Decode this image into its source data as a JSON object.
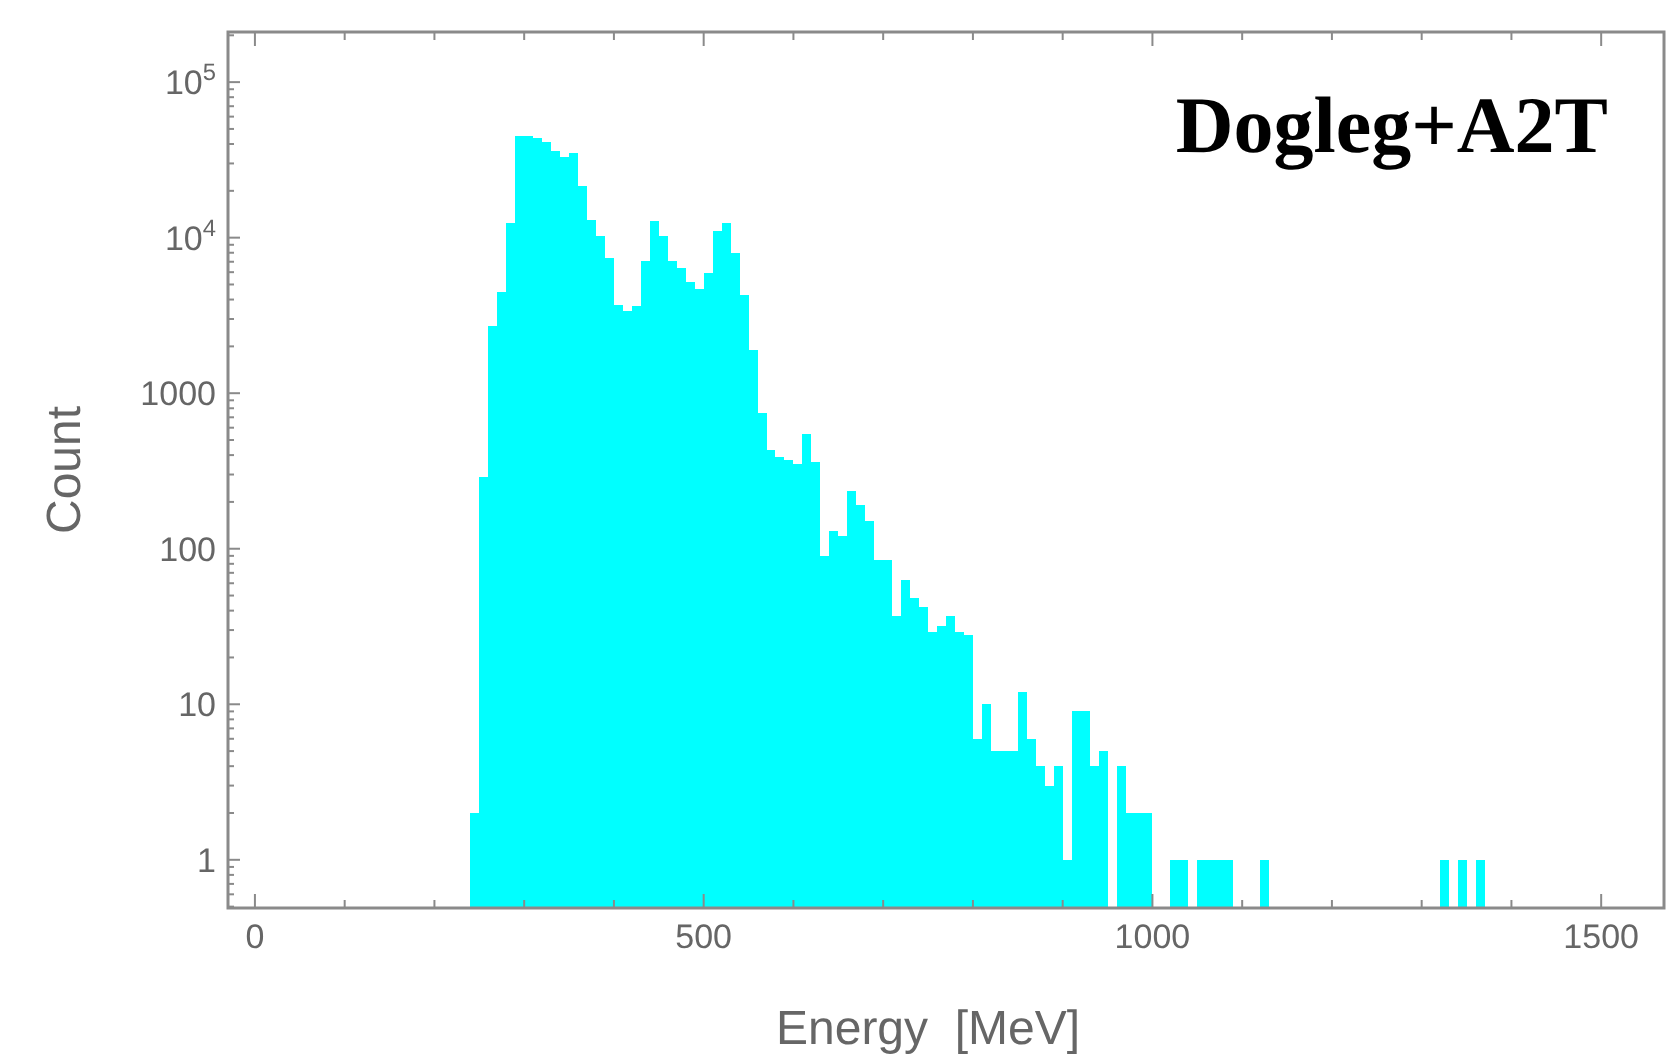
{
  "chart_data": {
    "type": "histogram",
    "title": "Dogleg+A2T",
    "xlabel": "Energy  [MeV]",
    "ylabel": "Count",
    "color": "#00ffff",
    "log": "y",
    "grid": false,
    "bins": [
      240,
      250,
      260,
      270,
      280,
      290,
      300,
      310,
      320,
      330,
      340,
      350,
      360,
      370,
      380,
      390,
      400,
      410,
      420,
      430,
      440,
      450,
      460,
      470,
      480,
      490,
      500,
      510,
      520,
      530,
      540,
      550,
      560,
      570,
      580,
      590,
      600,
      610,
      620,
      630,
      640,
      650,
      660,
      670,
      680,
      690,
      700,
      710,
      720,
      730,
      740,
      750,
      760,
      770,
      780,
      790,
      800,
      810,
      820,
      830,
      840,
      850,
      860,
      870,
      880,
      890,
      900,
      910,
      920,
      930,
      940,
      950,
      960,
      970,
      980,
      990,
      1000,
      1010,
      1020,
      1030,
      1040,
      1050,
      1060,
      1070,
      1080,
      1090,
      1100,
      1110,
      1120,
      1130,
      1140,
      1150,
      1160,
      1170,
      1180,
      1190,
      1200,
      1210,
      1220,
      1230,
      1240,
      1250,
      1260,
      1270,
      1280,
      1290,
      1300,
      1310,
      1320,
      1330,
      1340,
      1350,
      1360,
      1370
    ],
    "values": [
      2,
      290,
      2700,
      4500,
      12400,
      45000,
      45000,
      44000,
      41000,
      36000,
      33000,
      35000,
      21500,
      12900,
      10200,
      7400,
      3700,
      3400,
      3650,
      7100,
      12800,
      10200,
      7100,
      6400,
      5200,
      4700,
      5900,
      11000,
      12400,
      8000,
      4300,
      1900,
      750,
      430,
      390,
      370,
      350,
      550,
      360,
      90,
      130,
      120,
      235,
      190,
      150,
      85,
      85,
      37,
      63,
      48,
      42,
      29,
      32,
      37,
      29,
      28,
      6,
      10,
      5,
      5,
      5,
      12,
      6,
      4,
      3,
      4,
      1,
      9,
      9,
      4,
      5,
      null,
      4,
      2,
      2,
      2,
      null,
      null,
      1,
      1,
      null,
      1,
      1,
      1,
      1,
      null,
      null,
      null,
      1,
      null,
      null,
      null,
      null,
      null,
      null,
      null,
      null,
      null,
      null,
      null,
      null,
      null,
      null,
      null,
      null,
      null,
      null,
      null,
      1,
      null,
      1,
      null,
      1
    ],
    "xlim": [
      -30,
      1570
    ],
    "ylim": [
      0.49,
      210000
    ],
    "xticks": [
      0,
      {
        "value": 100,
        "label": null
      },
      {
        "value": 200,
        "label": null
      },
      {
        "value": 300,
        "label": null
      },
      {
        "value": 400,
        "label": null
      },
      500,
      {
        "value": 600,
        "label": null
      },
      {
        "value": 700,
        "label": null
      },
      {
        "value": 800,
        "label": null
      },
      {
        "value": 900,
        "label": null
      },
      1000,
      {
        "value": 1100,
        "label": null
      },
      {
        "value": 1200,
        "label": null
      },
      {
        "value": 1300,
        "label": null
      },
      {
        "value": 1400,
        "label": null
      },
      1500
    ],
    "yticks": [
      {
        "value": 0.5,
        "label": null
      },
      {
        "value": 0.6,
        "label": null
      },
      {
        "value": 0.7,
        "label": null
      },
      {
        "value": 0.8,
        "label": null
      },
      {
        "value": 0.9,
        "label": null
      },
      1,
      {
        "value": 2,
        "label": null
      },
      {
        "value": 3,
        "label": null
      },
      {
        "value": 4,
        "label": null
      },
      {
        "value": 5,
        "label": null
      },
      {
        "value": 6,
        "label": null
      },
      {
        "value": 7,
        "label": null
      },
      {
        "value": 8,
        "label": null
      },
      {
        "value": 9,
        "label": null
      },
      10,
      {
        "value": 20,
        "label": null
      },
      {
        "value": 30,
        "label": null
      },
      {
        "value": 40,
        "label": null
      },
      {
        "value": 50,
        "label": null
      },
      {
        "value": 60,
        "label": null
      },
      {
        "value": 70,
        "label": null
      },
      {
        "value": 80,
        "label": null
      },
      {
        "value": 90,
        "label": null
      },
      100,
      {
        "value": 200,
        "label": null
      },
      {
        "value": 300,
        "label": null
      },
      {
        "value": 400,
        "label": null
      },
      {
        "value": 500,
        "label": null
      },
      {
        "value": 600,
        "label": null
      },
      {
        "value": 700,
        "label": null
      },
      {
        "value": 800,
        "label": null
      },
      {
        "value": 900,
        "label": null
      },
      1000,
      {
        "value": 2000,
        "label": null
      },
      {
        "value": 3000,
        "label": null
      },
      {
        "value": 4000,
        "label": null
      },
      {
        "value": 5000,
        "label": null
      },
      {
        "value": 6000,
        "label": null
      },
      {
        "value": 7000,
        "label": null
      },
      {
        "value": 8000,
        "label": null
      },
      {
        "value": 9000,
        "label": null
      },
      {
        "value": 10000,
        "label": "10$^{4}$"
      },
      {
        "value": 20000,
        "label": null
      },
      {
        "value": 30000,
        "label": null
      },
      {
        "value": 40000,
        "label": null
      },
      {
        "value": 50000,
        "label": null
      },
      {
        "value": 60000,
        "label": null
      },
      {
        "value": 70000,
        "label": null
      },
      {
        "value": 80000,
        "label": null
      },
      {
        "value": 90000,
        "label": null
      },
      {
        "value": 100000,
        "label": "10$^{5}$"
      },
      {
        "value": 200000,
        "label": null
      }
    ]
  }
}
